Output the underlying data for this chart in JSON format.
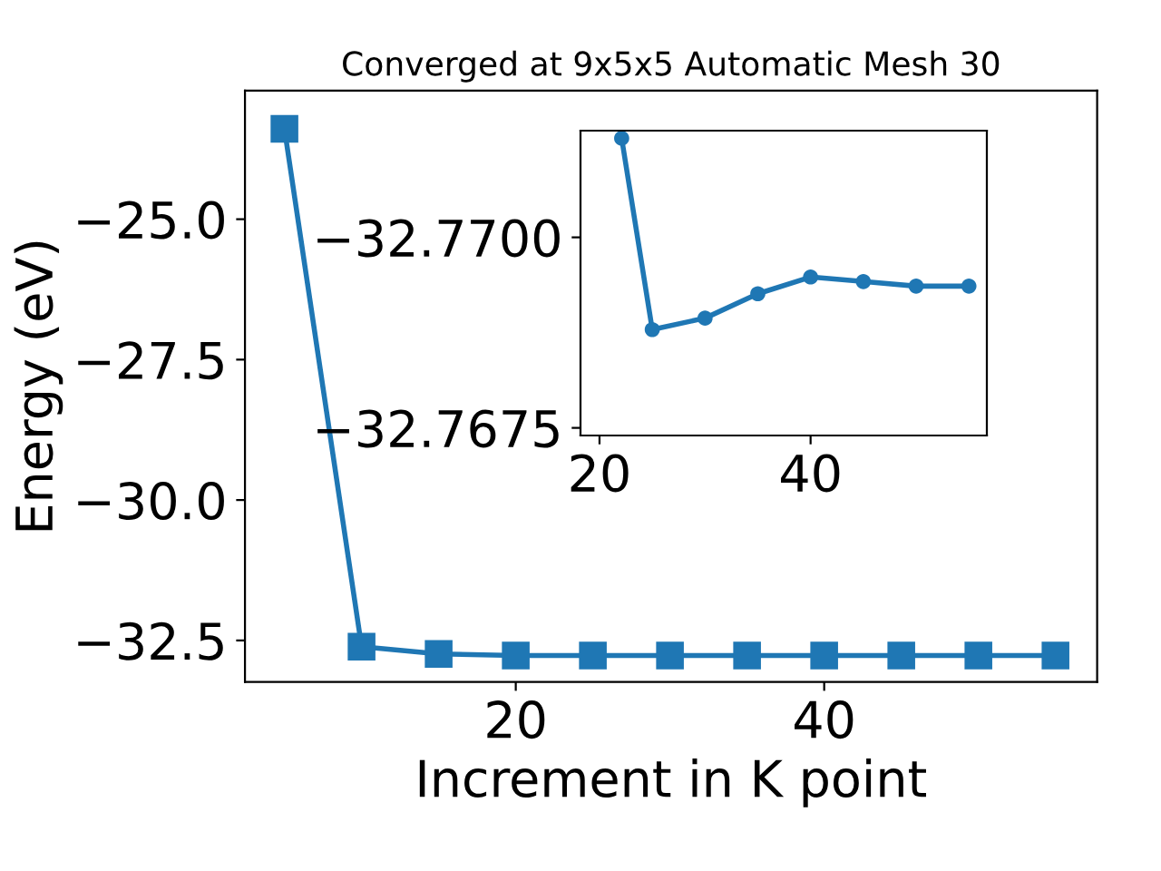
{
  "chart_data": [
    {
      "type": "line",
      "title": "Converged at 9x5x5 Automatic Mesh 30",
      "xlabel": "Increment in K point",
      "ylabel": "Energy (eV)",
      "x": [
        5,
        10,
        15,
        20,
        25,
        30,
        35,
        40,
        45,
        50,
        55
      ],
      "series": [
        {
          "color": "#1f77b4",
          "values": [
            -23.39,
            -32.61,
            -32.74,
            -32.77,
            -32.77,
            -32.77,
            -32.77,
            -32.77,
            -32.77,
            -32.77,
            -32.77
          ]
        }
      ],
      "marker": "square",
      "line_style": "solid",
      "grid": false,
      "legend": false,
      "xlim": [
        2.44,
        57.7
      ],
      "ylim": [
        -33.24,
        -22.71
      ],
      "xticks": [
        20,
        40
      ],
      "yticks": [
        {
          "value": -25,
          "label": "−25.0"
        },
        {
          "value": -27.5,
          "label": "−27.5"
        },
        {
          "value": -30,
          "label": "−30.0"
        },
        {
          "value": -32.5,
          "label": "−32.5"
        }
      ]
    },
    {
      "type": "line",
      "x": [
        22.1,
        25,
        30,
        35,
        40,
        45,
        50,
        55
      ],
      "series": [
        {
          "color": "#1f77b4",
          "values": [
            -32.7713,
            -32.76879,
            -32.76894,
            -32.76926,
            -32.76948,
            -32.76942,
            -32.76936,
            -32.76936
          ]
        }
      ],
      "marker": "circle",
      "line_style": "solid",
      "grid": false,
      "legend": false,
      "xlim": [
        18.2,
        56.7
      ],
      "ylim": [
        -32.7674,
        -32.7714
      ],
      "xticks": [
        20,
        40
      ],
      "yticks": [
        {
          "value": -32.77,
          "label": "−32.7700"
        },
        {
          "value": -32.7675,
          "label": "−32.7675"
        }
      ]
    }
  ]
}
